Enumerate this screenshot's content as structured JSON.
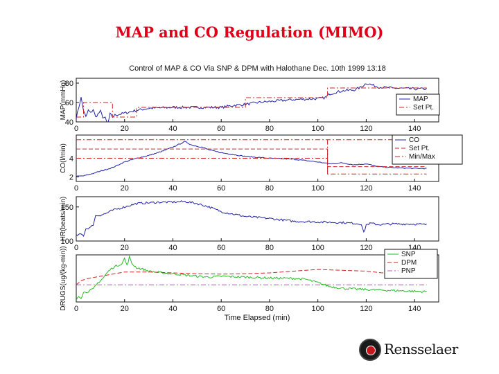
{
  "slide": {
    "title": "MAP and CO Regulation (MIMO)"
  },
  "logo": {
    "text": "Rensselaer",
    "icon": "seal-icon"
  },
  "chart_data": {
    "type": "line",
    "title": "Control of MAP & CO Via SNP & DPM with Halothane Dec. 10th 1999 13:18",
    "x_label": "Time Elapsed (min)",
    "x_range": [
      0,
      150
    ],
    "x_ticks": [
      0,
      20,
      40,
      60,
      80,
      100,
      120,
      140
    ],
    "panels": [
      {
        "id": "map",
        "ylabel": "MAP(mmHg)",
        "ylim": [
          40,
          85
        ],
        "yticks": [
          40,
          60,
          80
        ],
        "legend_position": "right",
        "legend": [
          "MAP",
          "Set Pt."
        ],
        "series": [
          {
            "name": "MAP",
            "color": "#1f1fa8",
            "style": "solid",
            "noise": 1.3,
            "x": [
              0,
              2,
              3,
              4,
              5,
              6,
              7,
              8,
              9,
              10,
              11,
              12,
              13,
              14,
              15,
              16,
              18,
              20,
              25,
              30,
              40,
              50,
              60,
              65,
              70,
              75,
              80,
              90,
              100,
              103,
              105,
              110,
              115,
              118,
              120,
              125,
              130,
              140,
              145
            ],
            "y": [
              44,
              65,
              52,
              45,
              52,
              49,
              53,
              45,
              48,
              51,
              45,
              44,
              37,
              48,
              45,
              47,
              48,
              49,
              52,
              54,
              55,
              55,
              55,
              57,
              58,
              60,
              61,
              63,
              64,
              65,
              69,
              72,
              73,
              76,
              80,
              76,
              75,
              74,
              74
            ]
          },
          {
            "name": "Set Pt.",
            "color": "#cc2222",
            "style": "dashdot",
            "x": [
              0,
              3,
              3,
              15,
              15,
              25,
              25,
              70,
              70,
              104,
              104,
              145
            ],
            "y": [
              45,
              45,
              60,
              60,
              45,
              45,
              55,
              55,
              65,
              65,
              75,
              75
            ]
          }
        ]
      },
      {
        "id": "co",
        "ylabel": "CO(l/min)",
        "ylim": [
          1.5,
          6.5
        ],
        "yticks": [
          2,
          4
        ],
        "legend_position": "top-right",
        "legend": [
          "CO",
          "Set Pt.",
          "Min/Max"
        ],
        "series": [
          {
            "name": "CO",
            "color": "#1f1fa8",
            "style": "solid",
            "noise": 0.05,
            "x": [
              0,
              3,
              6,
              10,
              15,
              20,
              25,
              30,
              35,
              40,
              45,
              48,
              52,
              55,
              60,
              70,
              80,
              90,
              100,
              105,
              110,
              115,
              120,
              125,
              130,
              140,
              145
            ],
            "y": [
              2.05,
              2.1,
              2.3,
              2.6,
              3.0,
              3.6,
              4.0,
              4.3,
              4.7,
              5.2,
              5.8,
              5.4,
              5.2,
              4.9,
              4.6,
              4.2,
              4.0,
              3.9,
              3.6,
              3.4,
              3.5,
              3.3,
              3.4,
              3.1,
              3.0,
              2.9,
              2.9
            ]
          },
          {
            "name": "Set Pt.",
            "color": "#cc2222",
            "style": "dashed",
            "x": [
              0,
              104,
              104,
              145
            ],
            "y": [
              5.0,
              5.0,
              3.1,
              3.1
            ]
          },
          {
            "name": "Min/Max",
            "color": "#cc2222",
            "style": "dashdot",
            "x": [
              0,
              145
            ],
            "y": [
              6.0,
              6.0
            ]
          },
          {
            "name": "Min/Max",
            "color": "#cc2222",
            "style": "dashdot",
            "x": [
              0,
              104,
              104,
              145
            ],
            "y": [
              4.0,
              4.0,
              2.3,
              2.3
            ]
          },
          {
            "name": "Set change",
            "color": "#cc2222",
            "style": "dashdot",
            "x": [
              104,
              104
            ],
            "y": [
              6.0,
              2.3
            ]
          }
        ]
      },
      {
        "id": "hr",
        "ylabel": "HR(beats/min)",
        "ylim": [
          100,
          165
        ],
        "yticks": [
          100,
          150
        ],
        "series": [
          {
            "name": "HR",
            "color": "#1f1fa8",
            "style": "solid",
            "noise": 1.5,
            "x": [
              0,
              2,
              3,
              4,
              5,
              6,
              7,
              8,
              10,
              12,
              15,
              18,
              20,
              25,
              30,
              35,
              40,
              45,
              50,
              55,
              60,
              70,
              80,
              90,
              100,
              110,
              115,
              118,
              119,
              120,
              122,
              125,
              130,
              140,
              145
            ],
            "y": [
              108,
              110,
              108,
              118,
              119,
              120,
              124,
              137,
              138,
              140,
              145,
              148,
              150,
              155,
              156,
              157,
              157,
              158,
              155,
              150,
              143,
              136,
              133,
              129,
              128,
              127,
              126,
              125,
              112,
              124,
              126,
              124,
              125,
              125,
              124
            ]
          }
        ]
      },
      {
        "id": "drugs",
        "ylabel": "DRUGS(ug/(kg-min))",
        "ylim": [
          0,
          11
        ],
        "yticks": [],
        "legend_position": "top-right",
        "legend": [
          "SNP",
          "DPM",
          "PNP"
        ],
        "series": [
          {
            "name": "SNP",
            "color": "#22bb22",
            "style": "solid",
            "noise": 0.25,
            "x": [
              0,
              1,
              2,
              3,
              5,
              7,
              9,
              11,
              13,
              15,
              17,
              19,
              20,
              21,
              22,
              23,
              25,
              28,
              30,
              35,
              40,
              45,
              50,
              55,
              60,
              70,
              80,
              90,
              95,
              100,
              105,
              110,
              120,
              130,
              140,
              145
            ],
            "y": [
              0.5,
              1.5,
              1.0,
              2.2,
              2.5,
              3.0,
              4.5,
              5.5,
              7.0,
              8.0,
              8.5,
              9.0,
              10.2,
              8.5,
              10.5,
              9.0,
              8.0,
              7.6,
              7.2,
              6.8,
              6.6,
              6.3,
              6.0,
              5.8,
              6.0,
              5.8,
              5.6,
              5.5,
              5.3,
              4.5,
              3.6,
              3.2,
              2.9,
              2.7,
              2.5,
              2.4
            ]
          },
          {
            "name": "DPM",
            "color": "#cc2222",
            "style": "dashed",
            "x": [
              0,
              2,
              5,
              10,
              15,
              20,
              25,
              30,
              40,
              50,
              60,
              70,
              80,
              90,
              100,
              110,
              120,
              130,
              140,
              145
            ],
            "y": [
              4.0,
              5.0,
              5.5,
              6.0,
              6.5,
              7.0,
              7.0,
              7.0,
              6.8,
              6.6,
              6.5,
              6.6,
              6.8,
              7.2,
              7.6,
              7.4,
              7.2,
              6.6,
              6.2,
              6.2
            ]
          },
          {
            "name": "PNP",
            "color": "#cc44cc",
            "style": "dashdot",
            "x": [
              0,
              145
            ],
            "y": [
              4.0,
              4.0
            ]
          }
        ]
      }
    ]
  }
}
